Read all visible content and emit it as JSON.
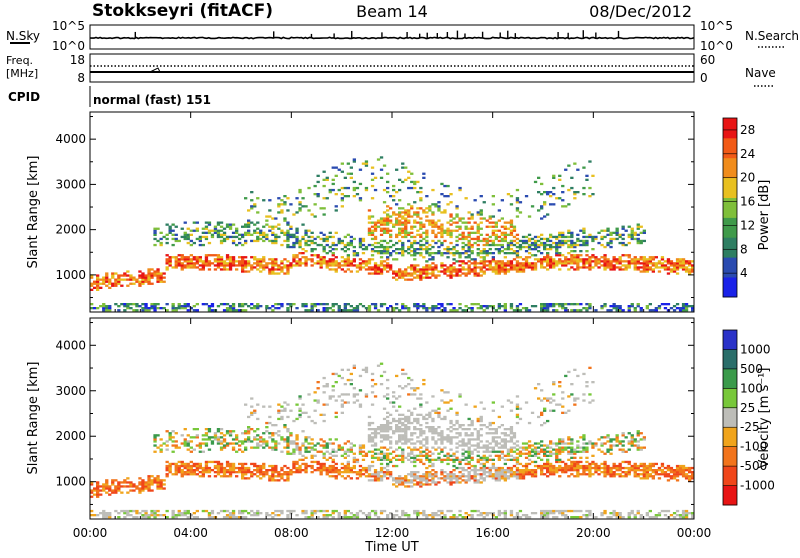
{
  "header": {
    "station": "Stokkseyri (fitACF)",
    "beam": "Beam 14",
    "date": "08/Dec/2012"
  },
  "noise_panel": {
    "left_label": "N.Sky",
    "right_label": "N.Search",
    "left_ticks": [
      "10^5",
      "10^0"
    ],
    "right_ticks": [
      "10^5",
      "10^0"
    ]
  },
  "freq_panel": {
    "left_label_line1": "Freq.",
    "left_label_line2": "[MHz]",
    "right_label": "Nave",
    "left_ticks": [
      "18",
      "8"
    ],
    "right_ticks": [
      "60",
      "0"
    ]
  },
  "cpid_panel": {
    "label": "CPID",
    "value": "normal (fast) 151"
  },
  "time_axis": {
    "title": "Time UT",
    "tick_labels": [
      "00:00",
      "04:00",
      "08:00",
      "12:00",
      "16:00",
      "20:00",
      "00:00"
    ]
  },
  "colors": {
    "power_scale": [
      "#1a22e8",
      "#2a4bb0",
      "#2e7e62",
      "#3f9a4a",
      "#7fbf3a",
      "#e8c020",
      "#f08c1c",
      "#f25a16",
      "#e81414"
    ],
    "velocity_scale": [
      "#2a32c8",
      "#2a6e6a",
      "#3a9a4a",
      "#78c83a",
      "#bdbdb8",
      "#f0a41c",
      "#f2741c",
      "#f0461a",
      "#e81414"
    ]
  },
  "chart_data": [
    {
      "type": "heatmap",
      "title": "",
      "xlabel": "",
      "ylabel": "Slant Range [km]",
      "xlim": [
        0,
        24
      ],
      "ylim": [
        180,
        4600
      ],
      "ytick_labels": [
        "1000",
        "2000",
        "3000",
        "4000"
      ],
      "colorbar_label": "Power [dB]",
      "colorbar_ticks": [
        "4",
        "8",
        "12",
        "16",
        "20",
        "24",
        "28"
      ],
      "colorbar_range": [
        0,
        30
      ]
    },
    {
      "type": "heatmap",
      "title": "",
      "xlabel": "Time UT",
      "ylabel": "Slant Range [km]",
      "xlim": [
        0,
        24
      ],
      "ylim": [
        180,
        4600
      ],
      "ytick_labels": [
        "1000",
        "2000",
        "3000",
        "4000"
      ],
      "colorbar_label": "Velocity [m s⁻¹]",
      "colorbar_ticks": [
        "1000",
        "500",
        "100",
        "25",
        "-25",
        "-100",
        "-500",
        "-1000"
      ]
    }
  ]
}
